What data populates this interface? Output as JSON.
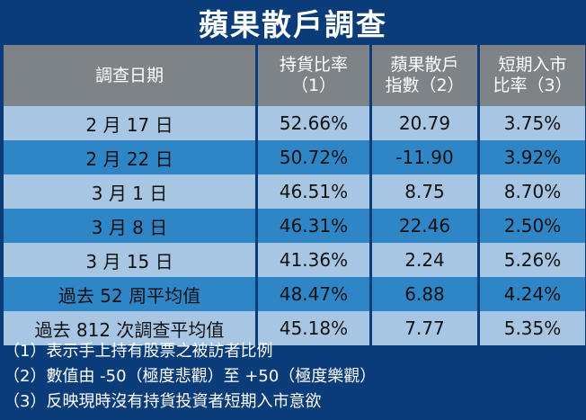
{
  "title": "蘋果散戶調查",
  "headers": {
    "col1": "調查日期",
    "col2_line1": "持貨比率",
    "col2_line2": "（1）",
    "col3_line1": "蘋果散戶",
    "col3_line2": "指數（2）",
    "col4_line1": "短期入市",
    "col4_line2": "比率（3）"
  },
  "rows": [
    {
      "date": "2 月 17 日",
      "holding": "52.66%",
      "index": "20.79",
      "entry": "3.75%"
    },
    {
      "date": "2 月 22 日",
      "holding": "50.72%",
      "index": "-11.90",
      "entry": "3.92%"
    },
    {
      "date": "3 月 1 日",
      "holding": "46.51%",
      "index": "8.75",
      "entry": "8.70%"
    },
    {
      "date": "3 月 8 日",
      "holding": "46.31%",
      "index": "22.46",
      "entry": "2.50%"
    },
    {
      "date": "3 月 15 日",
      "holding": "41.36%",
      "index": "2.24",
      "entry": "5.26%"
    },
    {
      "date": "過去 52 周平均值",
      "holding": "48.47%",
      "index": "6.88",
      "entry": "4.24%"
    },
    {
      "date": "過去 812 次調查平均值",
      "holding": "45.18%",
      "index": "7.77",
      "entry": "5.35%"
    }
  ],
  "notes": [
    "（1）表示手上持有股票之被訪者比例",
    "（2）數值由 -50（極度悲觀）至 +50（極度樂觀）",
    "（3）反映現時沒有持貨投資者短期入市意欲"
  ],
  "colors": {
    "background": "#0b3c7a",
    "header": "#7d8387",
    "row_light": "#a7c6e3",
    "row_dark": "#2f86c6"
  }
}
